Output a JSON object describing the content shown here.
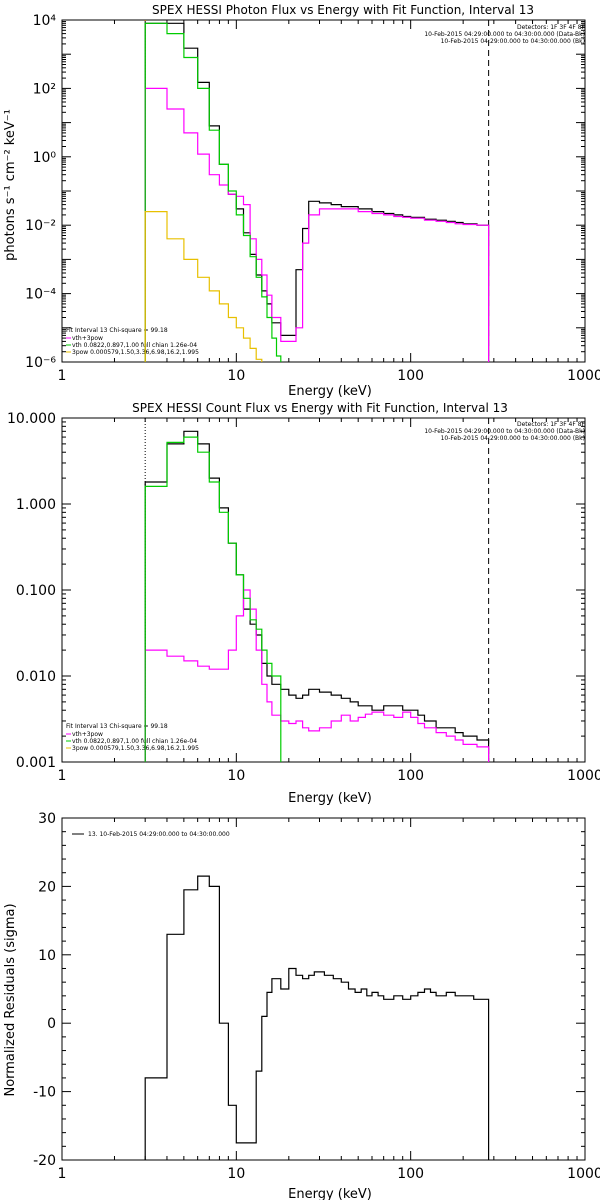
{
  "chart_data": [
    {
      "type": "line",
      "title": "SPEX HESSI Photon Flux vs Energy with Fit Function, Interval 13",
      "xlabel": "Energy (keV)",
      "ylabel": "photons s⁻¹ cm⁻² keV⁻¹",
      "xscale": "log",
      "yscale": "log",
      "xlim": [
        1,
        1000
      ],
      "ylim": [
        1e-06,
        10000.0
      ],
      "x_ticks": [
        {
          "v": 1,
          "label": "1"
        },
        {
          "v": 10,
          "label": "10"
        },
        {
          "v": 100,
          "label": "100"
        },
        {
          "v": 1000,
          "label": "1000"
        }
      ],
      "y_ticks": [
        {
          "v": 1e-06,
          "label": "10⁻⁶"
        },
        {
          "v": 0.0001,
          "label": "10⁻⁴"
        },
        {
          "v": 0.01,
          "label": "10⁻²"
        },
        {
          "v": 1,
          "label": "10⁰"
        },
        {
          "v": 100,
          "label": "10²"
        },
        {
          "v": 10000,
          "label": "10⁴"
        }
      ],
      "header_lines": [
        "Detectors: 1F 3F 4F 8F",
        "10-Feb-2015 04:29:00.000 to 04:30:00.000 (Data-Bk)",
        "10-Feb-2015 04:29:00.000 to 04:30:00.000 (Bk)"
      ],
      "fit_lines": [
        "Fit Interval 13   Chi-square = 99.18",
        "vth+3pow",
        "vth 0.0822,0.897,1.00  full chian 1.26e-04",
        "3pow 0.000579,1.50,3.36,6.98,16.2,1.995"
      ],
      "vlines": [
        {
          "x": 3,
          "color": "#e8a000",
          "style": "dotted"
        },
        {
          "x": 280,
          "color": "#000000",
          "style": "dashed"
        }
      ],
      "series": [
        {
          "color": "#000000",
          "steps": [
            [
              3,
              8000
            ],
            [
              4,
              8000
            ],
            [
              5,
              1500
            ],
            [
              6,
              150
            ],
            [
              7,
              8
            ],
            [
              8,
              0.6
            ],
            [
              9,
              0.08
            ],
            [
              10,
              0.03
            ],
            [
              11,
              0.006
            ],
            [
              12,
              0.0014
            ],
            [
              13,
              0.00035
            ],
            [
              14,
              0.00012
            ],
            [
              15,
              5e-05
            ],
            [
              16,
              1.4e-05
            ],
            [
              18,
              6e-06
            ],
            [
              20,
              6e-06
            ],
            [
              22,
              0.0005
            ],
            [
              24,
              0.008
            ],
            [
              26,
              0.05
            ],
            [
              30,
              0.045
            ],
            [
              35,
              0.04
            ],
            [
              40,
              0.035
            ],
            [
              50,
              0.03
            ],
            [
              60,
              0.025
            ],
            [
              70,
              0.022
            ],
            [
              80,
              0.02
            ],
            [
              90,
              0.018
            ],
            [
              100,
              0.017
            ],
            [
              120,
              0.015
            ],
            [
              140,
              0.014
            ],
            [
              160,
              0.013
            ],
            [
              180,
              0.012
            ],
            [
              200,
              0.011
            ],
            [
              240,
              0.01
            ]
          ],
          "end": 280
        },
        {
          "color": "#ff00ff",
          "steps": [
            [
              3,
              100
            ],
            [
              4,
              25
            ],
            [
              5,
              5
            ],
            [
              6,
              1.2
            ],
            [
              7,
              0.3
            ],
            [
              8,
              0.15
            ],
            [
              9,
              0.08
            ],
            [
              10,
              0.07
            ],
            [
              11,
              0.04
            ],
            [
              12,
              0.004
            ],
            [
              13,
              0.001
            ],
            [
              14,
              0.00035
            ],
            [
              15,
              9e-05
            ],
            [
              16,
              2e-05
            ],
            [
              18,
              4e-06
            ],
            [
              20,
              4e-06
            ],
            [
              22,
              1e-05
            ],
            [
              24,
              0.003
            ],
            [
              26,
              0.02
            ],
            [
              30,
              0.03
            ],
            [
              35,
              0.03
            ],
            [
              40,
              0.03
            ],
            [
              50,
              0.025
            ],
            [
              60,
              0.022
            ],
            [
              70,
              0.02
            ],
            [
              80,
              0.018
            ],
            [
              90,
              0.017
            ],
            [
              100,
              0.016
            ],
            [
              120,
              0.014
            ],
            [
              140,
              0.013
            ],
            [
              160,
              0.012
            ],
            [
              180,
              0.011
            ],
            [
              200,
              0.0105
            ],
            [
              240,
              0.01
            ]
          ],
          "end": 280
        },
        {
          "color": "#00cc00",
          "steps": [
            [
              3,
              8000
            ],
            [
              4,
              4000
            ],
            [
              5,
              800
            ],
            [
              6,
              100
            ],
            [
              7,
              6
            ],
            [
              8,
              0.6
            ],
            [
              9,
              0.1
            ],
            [
              10,
              0.02
            ],
            [
              11,
              0.005
            ],
            [
              12,
              0.0012
            ],
            [
              13,
              0.0003
            ],
            [
              14,
              8e-05
            ],
            [
              15,
              2e-05
            ],
            [
              16,
              5e-06
            ],
            [
              17,
              1.5e-06
            ]
          ],
          "end": 18
        },
        {
          "color": "#e8c000",
          "steps": [
            [
              3,
              0.025
            ],
            [
              4,
              0.004
            ],
            [
              5,
              0.001
            ],
            [
              6,
              0.0003
            ],
            [
              7,
              0.00012
            ],
            [
              8,
              5e-05
            ],
            [
              9,
              2e-05
            ],
            [
              10,
              1e-05
            ],
            [
              11,
              5e-06
            ],
            [
              12,
              2.5e-06
            ],
            [
              13,
              1.2e-06
            ]
          ],
          "end": 14
        }
      ]
    },
    {
      "type": "line",
      "title": "SPEX HESSI Count Flux vs Energy with Fit Function, Interval 13",
      "xlabel": "Energy (keV)",
      "ylabel": "",
      "xscale": "log",
      "yscale": "log",
      "xlim": [
        1,
        1000
      ],
      "ylim": [
        0.001,
        10
      ],
      "x_ticks": [
        {
          "v": 1,
          "label": "1"
        },
        {
          "v": 10,
          "label": "10"
        },
        {
          "v": 100,
          "label": "100"
        },
        {
          "v": 1000,
          "label": "1000"
        }
      ],
      "y_ticks": [
        {
          "v": 0.001,
          "label": "0.001"
        },
        {
          "v": 0.01,
          "label": "0.010"
        },
        {
          "v": 0.1,
          "label": "0.100"
        },
        {
          "v": 1,
          "label": "1.000"
        },
        {
          "v": 10,
          "label": "10.000"
        }
      ],
      "header_lines": [
        "Detectors: 1F 3F 4F 8F",
        "10-Feb-2015 04:29:00.000 to 04:30:00.000 (Data-Bk)",
        "10-Feb-2015 04:29:00.000 to 04:30:00.000 (Bk)"
      ],
      "fit_lines": [
        "Fit Interval 13   Chi-square = 99.18",
        "vth+3pow",
        "vth 0.0822,0.897,1.00  full chian 1.26e-04",
        "3pow 0.000579,1.50,3.36,6.98,16.2,1.995"
      ],
      "vlines": [
        {
          "x": 3,
          "color": "#000000",
          "style": "dotted"
        },
        {
          "x": 280,
          "color": "#000000",
          "style": "dashed"
        }
      ],
      "series": [
        {
          "color": "#000000",
          "steps": [
            [
              3,
              1.8
            ],
            [
              4,
              5
            ],
            [
              5,
              7
            ],
            [
              6,
              5
            ],
            [
              7,
              2
            ],
            [
              8,
              0.9
            ],
            [
              9,
              0.35
            ],
            [
              10,
              0.15
            ],
            [
              11,
              0.06
            ],
            [
              12,
              0.04
            ],
            [
              13,
              0.03
            ],
            [
              14,
              0.014
            ],
            [
              15,
              0.01
            ],
            [
              16,
              0.008
            ],
            [
              18,
              0.007
            ],
            [
              20,
              0.006
            ],
            [
              22,
              0.0055
            ],
            [
              24,
              0.006
            ],
            [
              26,
              0.007
            ],
            [
              30,
              0.0065
            ],
            [
              35,
              0.006
            ],
            [
              40,
              0.0055
            ],
            [
              45,
              0.005
            ],
            [
              50,
              0.0045
            ],
            [
              55,
              0.0045
            ],
            [
              60,
              0.004
            ],
            [
              70,
              0.0045
            ],
            [
              80,
              0.0045
            ],
            [
              90,
              0.004
            ],
            [
              100,
              0.004
            ],
            [
              110,
              0.0035
            ],
            [
              120,
              0.003
            ],
            [
              140,
              0.0025
            ],
            [
              160,
              0.0025
            ],
            [
              180,
              0.0022
            ],
            [
              200,
              0.002
            ],
            [
              240,
              0.0018
            ]
          ],
          "end": 280
        },
        {
          "color": "#ff00ff",
          "steps": [
            [
              3,
              0.02
            ],
            [
              4,
              0.017
            ],
            [
              5,
              0.015
            ],
            [
              6,
              0.013
            ],
            [
              7,
              0.012
            ],
            [
              8,
              0.012
            ],
            [
              9,
              0.02
            ],
            [
              10,
              0.05
            ],
            [
              11,
              0.1
            ],
            [
              12,
              0.06
            ],
            [
              13,
              0.02
            ],
            [
              14,
              0.008
            ],
            [
              15,
              0.005
            ],
            [
              16,
              0.0035
            ],
            [
              18,
              0.003
            ],
            [
              20,
              0.0028
            ],
            [
              22,
              0.003
            ],
            [
              24,
              0.0025
            ],
            [
              26,
              0.0023
            ],
            [
              30,
              0.0025
            ],
            [
              35,
              0.003
            ],
            [
              40,
              0.0035
            ],
            [
              45,
              0.003
            ],
            [
              50,
              0.0033
            ],
            [
              55,
              0.0036
            ],
            [
              60,
              0.0038
            ],
            [
              70,
              0.0035
            ],
            [
              80,
              0.0033
            ],
            [
              90,
              0.0038
            ],
            [
              100,
              0.0033
            ],
            [
              110,
              0.0028
            ],
            [
              120,
              0.0025
            ],
            [
              140,
              0.0022
            ],
            [
              160,
              0.002
            ],
            [
              180,
              0.0018
            ],
            [
              200,
              0.0016
            ],
            [
              240,
              0.0015
            ]
          ],
          "end": 280
        },
        {
          "color": "#00cc00",
          "steps": [
            [
              3,
              1.6
            ],
            [
              4,
              5.2
            ],
            [
              5,
              6
            ],
            [
              6,
              4
            ],
            [
              7,
              1.8
            ],
            [
              8,
              0.8
            ],
            [
              9,
              0.35
            ],
            [
              10,
              0.15
            ],
            [
              11,
              0.08
            ],
            [
              12,
              0.045
            ],
            [
              13,
              0.035
            ],
            [
              14,
              0.02
            ],
            [
              15,
              0.014
            ],
            [
              16,
              0.01
            ]
          ],
          "end": 18
        }
      ]
    },
    {
      "type": "line",
      "title": "",
      "xlabel": "Energy (keV)",
      "ylabel": "Normalized Residuals (sigma)",
      "xscale": "log",
      "yscale": "linear",
      "xlim": [
        1,
        1000
      ],
      "ylim": [
        -20,
        30
      ],
      "x_ticks": [
        {
          "v": 1,
          "label": "1"
        },
        {
          "v": 10,
          "label": "10"
        },
        {
          "v": 100,
          "label": "100"
        },
        {
          "v": 1000,
          "label": "1000"
        }
      ],
      "y_ticks": [
        {
          "v": -20,
          "label": "-20"
        },
        {
          "v": -10,
          "label": "-10"
        },
        {
          "v": 0,
          "label": "0"
        },
        {
          "v": 10,
          "label": "10"
        },
        {
          "v": 20,
          "label": "20"
        },
        {
          "v": 30,
          "label": "30"
        }
      ],
      "legend": "13. 10-Feb-2015 04:29:00.000 to 04:30:00.000",
      "series": [
        {
          "color": "#000000",
          "steps": [
            [
              3,
              -8
            ],
            [
              4,
              13
            ],
            [
              5,
              19.5
            ],
            [
              6,
              21.5
            ],
            [
              7,
              20
            ],
            [
              8,
              0
            ],
            [
              9,
              -12
            ],
            [
              10,
              -17.5
            ],
            [
              12,
              -17.5
            ],
            [
              13,
              -7
            ],
            [
              14,
              1
            ],
            [
              15,
              4.5
            ],
            [
              16,
              6.5
            ],
            [
              18,
              5
            ],
            [
              20,
              8
            ],
            [
              22,
              7
            ],
            [
              24,
              6.5
            ],
            [
              26,
              7
            ],
            [
              28,
              7.5
            ],
            [
              32,
              7
            ],
            [
              36,
              6.5
            ],
            [
              40,
              6
            ],
            [
              44,
              5
            ],
            [
              48,
              4.5
            ],
            [
              52,
              5
            ],
            [
              56,
              4
            ],
            [
              60,
              4.5
            ],
            [
              65,
              4
            ],
            [
              70,
              3.5
            ],
            [
              80,
              4
            ],
            [
              90,
              3.5
            ],
            [
              100,
              4
            ],
            [
              110,
              4.5
            ],
            [
              120,
              5
            ],
            [
              130,
              4.5
            ],
            [
              140,
              4
            ],
            [
              160,
              4.5
            ],
            [
              180,
              4
            ],
            [
              200,
              4
            ],
            [
              230,
              3.5
            ]
          ],
          "end": 280,
          "start_from": -20
        }
      ]
    }
  ]
}
